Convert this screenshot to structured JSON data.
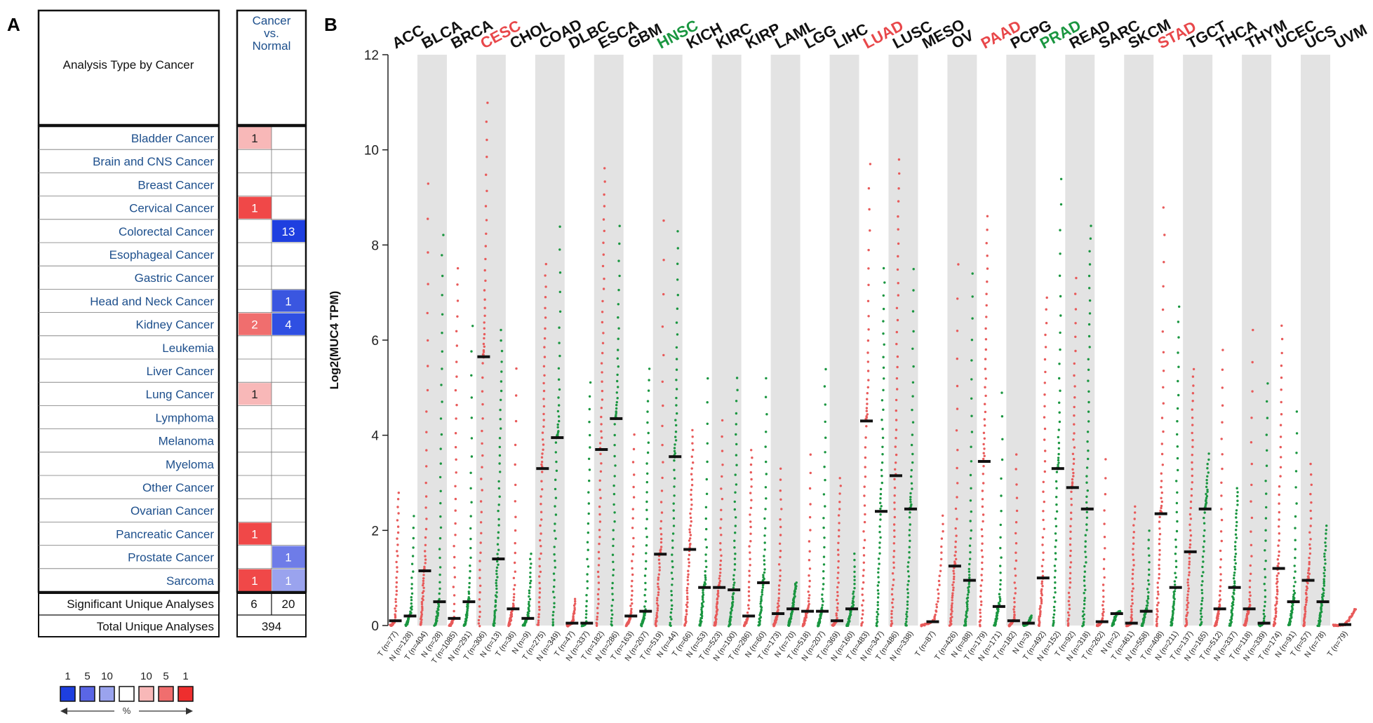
{
  "panel_labels": {
    "a": "A",
    "b": "B"
  },
  "oncomine_table": {
    "header_left": "Analysis Type by Cancer",
    "header_right": [
      "Cancer",
      "vs.",
      "Normal"
    ],
    "rows": [
      {
        "name": "Bladder Cancer",
        "up": "1",
        "down": ""
      },
      {
        "name": "Brain and CNS Cancer",
        "up": "",
        "down": ""
      },
      {
        "name": "Breast Cancer",
        "up": "",
        "down": ""
      },
      {
        "name": "Cervical Cancer",
        "up": "1",
        "down": ""
      },
      {
        "name": "Colorectal Cancer",
        "up": "",
        "down": "13"
      },
      {
        "name": "Esophageal Cancer",
        "up": "",
        "down": ""
      },
      {
        "name": "Gastric Cancer",
        "up": "",
        "down": ""
      },
      {
        "name": "Head and Neck Cancer",
        "up": "",
        "down": "1"
      },
      {
        "name": "Kidney Cancer",
        "up": "2",
        "down": "4"
      },
      {
        "name": "Leukemia",
        "up": "",
        "down": ""
      },
      {
        "name": "Liver Cancer",
        "up": "",
        "down": ""
      },
      {
        "name": "Lung Cancer",
        "up": "1",
        "down": ""
      },
      {
        "name": "Lymphoma",
        "up": "",
        "down": ""
      },
      {
        "name": "Melanoma",
        "up": "",
        "down": ""
      },
      {
        "name": "Myeloma",
        "up": "",
        "down": ""
      },
      {
        "name": "Other Cancer",
        "up": "",
        "down": ""
      },
      {
        "name": "Ovarian Cancer",
        "up": "",
        "down": ""
      },
      {
        "name": "Pancreatic Cancer",
        "up": "1",
        "down": ""
      },
      {
        "name": "Prostate Cancer",
        "up": "",
        "down": "1"
      },
      {
        "name": "Sarcoma",
        "up": "1",
        "down": "1"
      }
    ],
    "significant_label": "Significant Unique Analyses",
    "significant_up": "6",
    "significant_down": "20",
    "total_label": "Total Unique Analyses",
    "total_value": "394",
    "legend_numbers": [
      "1",
      "5",
      "10",
      "10",
      "5",
      "1"
    ],
    "legend_unit": "%",
    "cell_colors": {
      "up": {
        "1": "#f04848",
        "2": "#f06e6e"
      },
      "up_light": "#f8b8b8",
      "down": {
        "13": "#1e3fe0",
        "4": "#2f4fe2",
        "1_strong": "#3a56e0",
        "1_medium": "#6e7ce8",
        "1_light": "#9aa3ee"
      }
    },
    "legend_colors": [
      "#1e3fe0",
      "#5a66e6",
      "#9aa3ee",
      "#ffffff",
      "#f8b8b8",
      "#f06e6e",
      "#ee2e2e"
    ]
  },
  "chart_data": {
    "type": "scatter",
    "ylabel": "Log2(MUC4 TPM)",
    "ylim": [
      0,
      12
    ],
    "yticks": [
      0,
      2,
      4,
      6,
      8,
      10,
      12
    ],
    "colors": {
      "tumor": "#e85a5a",
      "normal": "#1a9640",
      "up_label": "#e8474a",
      "down_label": "#1a9640",
      "neutral_label": "#111111",
      "band": "#e3e3e3"
    },
    "cancers": [
      {
        "name": "ACC",
        "status": "none",
        "groups": [
          {
            "label": "T (n=77)",
            "type": "T",
            "median": 0.1,
            "max": 2.8
          },
          {
            "label": "N (n=128)",
            "type": "N",
            "median": 0.2,
            "max": 2.3
          }
        ]
      },
      {
        "name": "BLCA",
        "status": "none",
        "groups": [
          {
            "label": "T (n=404)",
            "type": "T",
            "median": 1.15,
            "max": 9.3
          },
          {
            "label": "N (n=28)",
            "type": "N",
            "median": 0.5,
            "max": 8.2
          }
        ]
      },
      {
        "name": "BRCA",
        "status": "none",
        "groups": [
          {
            "label": "T (n=1085)",
            "type": "T",
            "median": 0.15,
            "max": 7.5
          },
          {
            "label": "N (n=291)",
            "type": "N",
            "median": 0.5,
            "max": 6.3
          }
        ]
      },
      {
        "name": "CESC",
        "status": "up",
        "groups": [
          {
            "label": "T (n=306)",
            "type": "T",
            "median": 5.65,
            "max": 11.0
          },
          {
            "label": "N (n=13)",
            "type": "N",
            "median": 1.4,
            "max": 6.2
          }
        ]
      },
      {
        "name": "CHOL",
        "status": "none",
        "groups": [
          {
            "label": "T (n=36)",
            "type": "T",
            "median": 0.35,
            "max": 5.4
          },
          {
            "label": "N (n=9)",
            "type": "N",
            "median": 0.15,
            "max": 1.5
          }
        ]
      },
      {
        "name": "COAD",
        "status": "none",
        "groups": [
          {
            "label": "T (n=275)",
            "type": "T",
            "median": 3.3,
            "max": 7.6
          },
          {
            "label": "N (n=349)",
            "type": "N",
            "median": 3.95,
            "max": 8.4
          }
        ]
      },
      {
        "name": "DLBC",
        "status": "none",
        "groups": [
          {
            "label": "T (n=47)",
            "type": "T",
            "median": 0.05,
            "max": 0.55
          },
          {
            "label": "N (n=337)",
            "type": "N",
            "median": 0.05,
            "max": 5.1
          }
        ]
      },
      {
        "name": "ESCA",
        "status": "none",
        "groups": [
          {
            "label": "T (n=182)",
            "type": "T",
            "median": 3.7,
            "max": 9.6
          },
          {
            "label": "N (n=286)",
            "type": "N",
            "median": 4.35,
            "max": 8.4
          }
        ]
      },
      {
        "name": "GBM",
        "status": "none",
        "groups": [
          {
            "label": "T (n=163)",
            "type": "T",
            "median": 0.2,
            "max": 4.0
          },
          {
            "label": "N (n=207)",
            "type": "N",
            "median": 0.3,
            "max": 5.4
          }
        ]
      },
      {
        "name": "HNSC",
        "status": "down",
        "groups": [
          {
            "label": "T (n=519)",
            "type": "T",
            "median": 1.5,
            "max": 8.5
          },
          {
            "label": "N (n=44)",
            "type": "N",
            "median": 3.55,
            "max": 8.3
          }
        ]
      },
      {
        "name": "KICH",
        "status": "none",
        "groups": [
          {
            "label": "T (n=66)",
            "type": "T",
            "median": 1.6,
            "max": 4.1
          },
          {
            "label": "N (n=53)",
            "type": "N",
            "median": 0.8,
            "max": 5.2
          }
        ]
      },
      {
        "name": "KIRC",
        "status": "none",
        "groups": [
          {
            "label": "T (n=523)",
            "type": "T",
            "median": 0.8,
            "max": 4.3
          },
          {
            "label": "N (n=100)",
            "type": "N",
            "median": 0.75,
            "max": 5.2
          }
        ]
      },
      {
        "name": "KIRP",
        "status": "none",
        "groups": [
          {
            "label": "T (n=286)",
            "type": "T",
            "median": 0.2,
            "max": 3.7
          },
          {
            "label": "N (n=60)",
            "type": "N",
            "median": 0.9,
            "max": 5.2
          }
        ]
      },
      {
        "name": "LAML",
        "status": "none",
        "groups": [
          {
            "label": "T (n=173)",
            "type": "T",
            "median": 0.25,
            "max": 3.3
          },
          {
            "label": "N (n=70)",
            "type": "N",
            "median": 0.35,
            "max": 0.9
          }
        ]
      },
      {
        "name": "LGG",
        "status": "none",
        "groups": [
          {
            "label": "T (n=518)",
            "type": "T",
            "median": 0.3,
            "max": 3.6
          },
          {
            "label": "N (n=207)",
            "type": "N",
            "median": 0.3,
            "max": 5.4
          }
        ]
      },
      {
        "name": "LIHC",
        "status": "none",
        "groups": [
          {
            "label": "T (n=369)",
            "type": "T",
            "median": 0.1,
            "max": 3.1
          },
          {
            "label": "N (n=160)",
            "type": "N",
            "median": 0.35,
            "max": 1.5
          }
        ]
      },
      {
        "name": "LUAD",
        "status": "up",
        "groups": [
          {
            "label": "T (n=483)",
            "type": "T",
            "median": 4.3,
            "max": 9.7
          },
          {
            "label": "N (n=347)",
            "type": "N",
            "median": 2.4,
            "max": 7.5
          }
        ]
      },
      {
        "name": "LUSC",
        "status": "none",
        "groups": [
          {
            "label": "T (n=486)",
            "type": "T",
            "median": 3.15,
            "max": 9.8
          },
          {
            "label": "N (n=338)",
            "type": "N",
            "median": 2.45,
            "max": 7.5
          }
        ]
      },
      {
        "name": "MESO",
        "status": "none",
        "groups": [
          {
            "label": "T (n=87)",
            "type": "T",
            "median": 0.08,
            "max": 2.3
          }
        ]
      },
      {
        "name": "OV",
        "status": "none",
        "groups": [
          {
            "label": "T (n=426)",
            "type": "T",
            "median": 1.25,
            "max": 7.6
          },
          {
            "label": "N (n=88)",
            "type": "N",
            "median": 0.95,
            "max": 7.4
          }
        ]
      },
      {
        "name": "PAAD",
        "status": "up",
        "groups": [
          {
            "label": "T (n=179)",
            "type": "T",
            "median": 3.45,
            "max": 8.6
          },
          {
            "label": "N (n=171)",
            "type": "N",
            "median": 0.4,
            "max": 4.9
          }
        ]
      },
      {
        "name": "PCPG",
        "status": "none",
        "groups": [
          {
            "label": "T (n=182)",
            "type": "T",
            "median": 0.1,
            "max": 3.6
          },
          {
            "label": "N (n=3)",
            "type": "N",
            "median": 0.05,
            "max": 0.2
          }
        ]
      },
      {
        "name": "PRAD",
        "status": "down",
        "groups": [
          {
            "label": "T (n=492)",
            "type": "T",
            "median": 1.0,
            "max": 6.9
          },
          {
            "label": "N (n=152)",
            "type": "N",
            "median": 3.3,
            "max": 9.4
          }
        ]
      },
      {
        "name": "READ",
        "status": "none",
        "groups": [
          {
            "label": "T (n=92)",
            "type": "T",
            "median": 2.9,
            "max": 7.3
          },
          {
            "label": "N (n=318)",
            "type": "N",
            "median": 2.45,
            "max": 8.4
          }
        ]
      },
      {
        "name": "SARC",
        "status": "none",
        "groups": [
          {
            "label": "T (n=262)",
            "type": "T",
            "median": 0.08,
            "max": 3.5
          },
          {
            "label": "N (n=2)",
            "type": "N",
            "median": 0.25,
            "max": 0.3
          }
        ]
      },
      {
        "name": "SKCM",
        "status": "none",
        "groups": [
          {
            "label": "T (n=461)",
            "type": "T",
            "median": 0.05,
            "max": 2.5
          },
          {
            "label": "N (n=558)",
            "type": "N",
            "median": 0.3,
            "max": 2.0
          }
        ]
      },
      {
        "name": "STAD",
        "status": "up",
        "groups": [
          {
            "label": "T (n=408)",
            "type": "T",
            "median": 2.35,
            "max": 8.8
          },
          {
            "label": "N (n=211)",
            "type": "N",
            "median": 0.8,
            "max": 6.7
          }
        ]
      },
      {
        "name": "TGCT",
        "status": "none",
        "groups": [
          {
            "label": "T (n=137)",
            "type": "T",
            "median": 1.55,
            "max": 5.4
          },
          {
            "label": "N (n=165)",
            "type": "N",
            "median": 2.45,
            "max": 3.6
          }
        ]
      },
      {
        "name": "THCA",
        "status": "none",
        "groups": [
          {
            "label": "T (n=512)",
            "type": "T",
            "median": 0.35,
            "max": 5.8
          },
          {
            "label": "N (n=337)",
            "type": "N",
            "median": 0.8,
            "max": 2.9
          }
        ]
      },
      {
        "name": "THYM",
        "status": "none",
        "groups": [
          {
            "label": "T (n=118)",
            "type": "T",
            "median": 0.35,
            "max": 6.2
          },
          {
            "label": "N (n=339)",
            "type": "N",
            "median": 0.05,
            "max": 5.1
          }
        ]
      },
      {
        "name": "UCEC",
        "status": "none",
        "groups": [
          {
            "label": "T (n=174)",
            "type": "T",
            "median": 1.2,
            "max": 6.3
          },
          {
            "label": "N (n=91)",
            "type": "N",
            "median": 0.5,
            "max": 4.5
          }
        ]
      },
      {
        "name": "UCS",
        "status": "none",
        "groups": [
          {
            "label": "T (n=57)",
            "type": "T",
            "median": 0.95,
            "max": 3.4
          },
          {
            "label": "N (n=78)",
            "type": "N",
            "median": 0.5,
            "max": 2.1
          }
        ]
      },
      {
        "name": "UVM",
        "status": "none",
        "groups": [
          {
            "label": "T (n=79)",
            "type": "T",
            "median": 0.02,
            "max": 0.35
          }
        ]
      }
    ]
  }
}
